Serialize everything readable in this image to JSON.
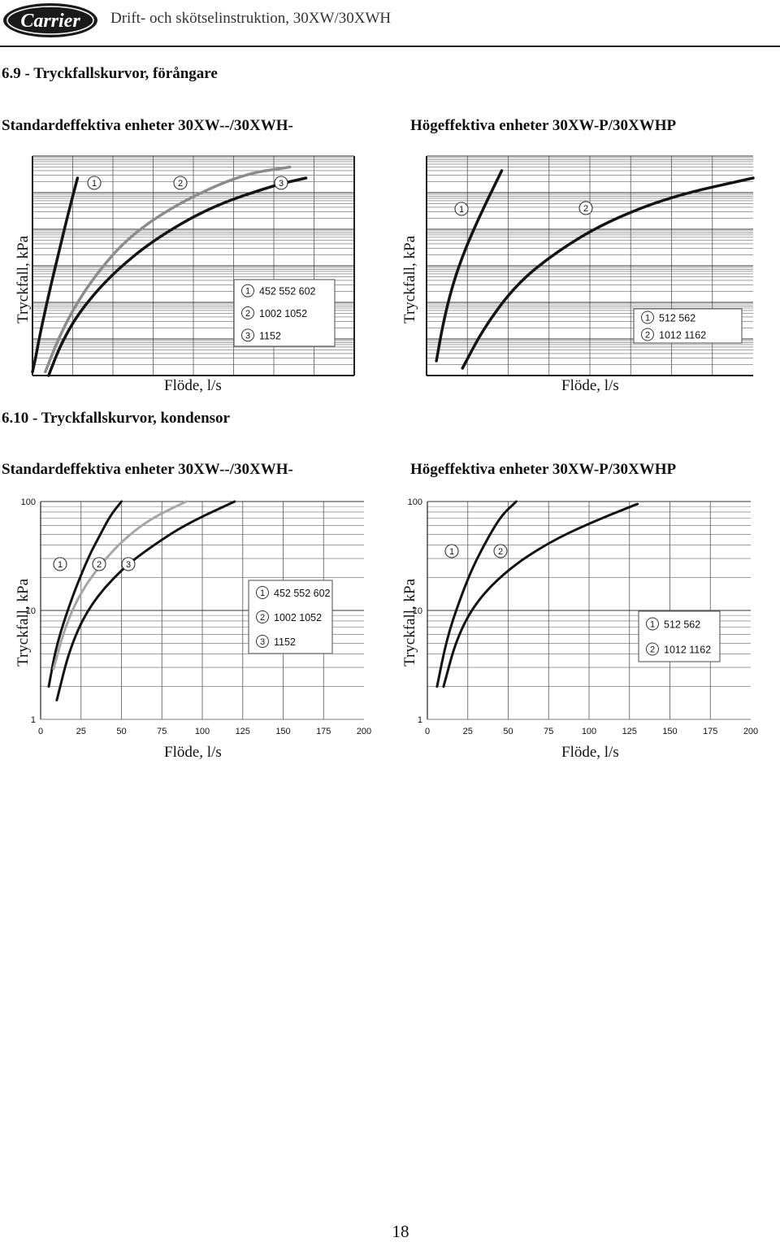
{
  "header": {
    "logo_text": "Carrier",
    "title": "Drift- och skötselinstruktion, 30XW/30XWH"
  },
  "sections": [
    {
      "title": "6.9 - Tryckfallskurvor, förångare",
      "left_subtitle": "Standardeffektiva enheter 30XW--/30XWH-",
      "right_subtitle": "Högeffektiva enheter 30XW-P/30XWHP"
    },
    {
      "title": "6.10 - Tryckfallskurvor, kondensor",
      "left_subtitle": "Standardeffektiva enheter 30XW--/30XWH-",
      "right_subtitle": "Högeffektiva enheter 30XW-P/30XWHP"
    }
  ],
  "page_number": "18",
  "colors": {
    "dark_curve": "#141414",
    "grey_curve": "#8c8c8c",
    "light_grey_curve": "#a6a6a6",
    "grid": "#555555"
  },
  "chart_data": [
    {
      "id": "evap-standard",
      "type": "line",
      "xlabel": "Flöde, l/s",
      "ylabel": "Tryckfall, kPa",
      "y_scale": "log",
      "x_tick_labels": [],
      "y_tick_labels": [],
      "markers": [
        "1",
        "2",
        "3"
      ],
      "legend": {
        "placement": "bottom-right",
        "entries": [
          {
            "num": "1",
            "text": "452 552 602"
          },
          {
            "num": "2",
            "text": "1002 1052"
          },
          {
            "num": "3",
            "text": "1152"
          }
        ]
      },
      "series": [
        {
          "marker": "1",
          "color": "#141414",
          "points": [
            [
              0,
              0.1
            ],
            [
              2,
              0.5
            ],
            [
              5,
              1.2
            ],
            [
              10,
              2.2
            ],
            [
              16,
              3.3
            ],
            [
              22,
              4.4
            ],
            [
              28,
              5.4
            ]
          ]
        },
        {
          "marker": "2",
          "color": "#8c8c8c",
          "points": [
            [
              8,
              0.1
            ],
            [
              15,
              0.9
            ],
            [
              25,
              1.8
            ],
            [
              40,
              2.8
            ],
            [
              60,
              3.8
            ],
            [
              90,
              4.7
            ],
            [
              130,
              5.5
            ],
            [
              160,
              5.7
            ]
          ]
        },
        {
          "marker": "3",
          "color": "#141414",
          "points": [
            [
              10,
              0.0
            ],
            [
              18,
              0.9
            ],
            [
              30,
              1.8
            ],
            [
              50,
              2.8
            ],
            [
              75,
              3.7
            ],
            [
              110,
              4.6
            ],
            [
              150,
              5.2
            ],
            [
              170,
              5.4
            ]
          ]
        }
      ]
    },
    {
      "id": "evap-high",
      "type": "line",
      "xlabel": "Flöde, l/s",
      "ylabel": "Tryckfall, kPa",
      "y_scale": "log",
      "x_tick_labels": [],
      "y_tick_labels": [],
      "markers": [
        "1",
        "2"
      ],
      "legend": {
        "placement": "bottom-right",
        "entries": [
          {
            "num": "1",
            "text": "512 562"
          },
          {
            "num": "2",
            "text": "1012 1162"
          }
        ]
      },
      "series": [
        {
          "marker": "1",
          "color": "#141414",
          "points": [
            [
              6,
              0.4
            ],
            [
              10,
              1.4
            ],
            [
              16,
              2.5
            ],
            [
              24,
              3.5
            ],
            [
              34,
              4.5
            ],
            [
              46,
              5.6
            ]
          ]
        },
        {
          "marker": "2",
          "color": "#141414",
          "points": [
            [
              22,
              0.2
            ],
            [
              35,
              1.3
            ],
            [
              55,
              2.5
            ],
            [
              80,
              3.4
            ],
            [
              110,
              4.2
            ],
            [
              150,
              4.9
            ],
            [
              200,
              5.4
            ]
          ]
        }
      ]
    },
    {
      "id": "cond-standard",
      "type": "line",
      "xlabel": "Flöde, l/s",
      "ylabel": "Tryckfall, kPa",
      "y_scale": "log",
      "xlim": [
        0,
        200
      ],
      "ylim": [
        1,
        100
      ],
      "x_ticks": [
        0,
        25,
        50,
        75,
        100,
        125,
        150,
        175,
        200
      ],
      "x_tick_labels": [
        "0",
        "25",
        "50",
        "75",
        "100",
        "125",
        "150",
        "175",
        "200"
      ],
      "y_ticks": [
        1,
        10,
        100
      ],
      "y_tick_labels": [
        "1",
        "10",
        "100"
      ],
      "markers": [
        "1",
        "2",
        "3"
      ],
      "legend": {
        "placement": "right",
        "entries": [
          {
            "num": "1",
            "text": "452 552 602"
          },
          {
            "num": "2",
            "text": "1002 1052"
          },
          {
            "num": "3",
            "text": "1152"
          }
        ]
      },
      "series": [
        {
          "marker": "1",
          "color": "#141414",
          "points": [
            [
              5,
              2.0
            ],
            [
              10,
              5.0
            ],
            [
              20,
              14
            ],
            [
              30,
              32
            ],
            [
              37,
              50
            ],
            [
              43,
              74
            ],
            [
              50,
              100
            ]
          ]
        },
        {
          "marker": "2",
          "color": "#a6a6a6",
          "points": [
            [
              8,
              2.9
            ],
            [
              15,
              7
            ],
            [
              25,
              15
            ],
            [
              40,
              30
            ],
            [
              55,
              50
            ],
            [
              70,
              72
            ],
            [
              90,
              100
            ]
          ]
        },
        {
          "marker": "3",
          "color": "#141414",
          "points": [
            [
              10,
              1.5
            ],
            [
              18,
              4.5
            ],
            [
              30,
              11
            ],
            [
              50,
              24
            ],
            [
              70,
              40
            ],
            [
              90,
              62
            ],
            [
              120,
              100
            ]
          ]
        }
      ]
    },
    {
      "id": "cond-high",
      "type": "line",
      "xlabel": "Flöde, l/s",
      "ylabel": "Tryckfall, kPa",
      "y_scale": "log",
      "xlim": [
        0,
        200
      ],
      "ylim": [
        1,
        100
      ],
      "x_ticks": [
        0,
        25,
        50,
        75,
        100,
        125,
        150,
        175,
        200
      ],
      "x_tick_labels": [
        "0",
        "25",
        "50",
        "75",
        "100",
        "125",
        "150",
        "175",
        "200"
      ],
      "y_ticks": [
        1,
        10,
        100
      ],
      "y_tick_labels": [
        "1",
        "10",
        "100"
      ],
      "markers": [
        "1",
        "2"
      ],
      "legend": {
        "placement": "right",
        "entries": [
          {
            "num": "1",
            "text": "512 562"
          },
          {
            "num": "2",
            "text": "1012 1162"
          }
        ]
      },
      "series": [
        {
          "marker": "1",
          "color": "#141414",
          "points": [
            [
              6,
              2.0
            ],
            [
              12,
              5.5
            ],
            [
              20,
              12.5
            ],
            [
              28,
              25
            ],
            [
              38,
              48
            ],
            [
              46,
              75
            ],
            [
              55,
              100
            ]
          ]
        },
        {
          "marker": "2",
          "color": "#141414",
          "points": [
            [
              10,
              2.0
            ],
            [
              18,
              5.5
            ],
            [
              30,
              12
            ],
            [
              50,
              24
            ],
            [
              75,
              42
            ],
            [
              100,
              63
            ],
            [
              130,
              95
            ]
          ]
        }
      ]
    }
  ]
}
